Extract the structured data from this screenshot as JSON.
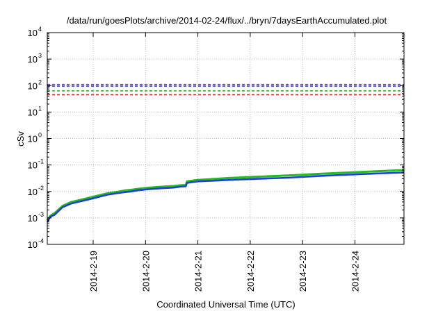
{
  "chart_data": {
    "type": "line",
    "title": "/data/run/goesPlots/archive/2014-02-24/flux/../bryn/7daysEarthAccumulated.plot",
    "xlabel": "Coordinated Universal Time (UTC)",
    "ylabel": "cSv",
    "y_scale": "log",
    "ylim_exponents": [
      -4,
      4
    ],
    "y_tick_labels": [
      {
        "base": "10",
        "exp": "-4"
      },
      {
        "base": "10",
        "exp": "-3"
      },
      {
        "base": "10",
        "exp": "-2"
      },
      {
        "base": "10",
        "exp": "-1"
      },
      {
        "base": "10",
        "exp": "0"
      },
      {
        "base": "10",
        "exp": "1"
      },
      {
        "base": "10",
        "exp": "2"
      },
      {
        "base": "10",
        "exp": "3"
      },
      {
        "base": "10",
        "exp": "4"
      }
    ],
    "xlim": [
      "2014-02-18 02:00",
      "2014-02-24 24:00"
    ],
    "x_tick_labels": [
      "2014-2-19",
      "2014-2-20",
      "2014-2-21",
      "2014-2-22",
      "2014-2-23",
      "2014-2-24"
    ],
    "grid": true,
    "thresholds": [
      {
        "value": 110,
        "color": "#8a2be2"
      },
      {
        "value": 95,
        "color": "#1f4fd6"
      },
      {
        "value": 63,
        "color": "#22bb22"
      },
      {
        "value": 45,
        "color": "#e02020"
      }
    ],
    "series": [
      {
        "color": "#22bb22",
        "x_days": [
          0.0,
          0.05,
          0.12,
          0.25,
          0.4,
          0.55,
          0.75,
          1.0,
          1.2,
          1.3,
          1.4,
          1.5,
          1.7,
          1.9,
          2.1,
          2.2,
          2.3,
          2.32,
          2.5,
          3.0,
          3.5,
          4.0,
          4.5,
          5.0,
          5.5,
          5.92
        ],
        "y": [
          0.0008,
          0.0012,
          0.0015,
          0.0028,
          0.004,
          0.0048,
          0.0062,
          0.0085,
          0.01,
          0.011,
          0.0115,
          0.0125,
          0.014,
          0.015,
          0.016,
          0.017,
          0.0175,
          0.024,
          0.027,
          0.032,
          0.036,
          0.04,
          0.046,
          0.052,
          0.058,
          0.064
        ]
      },
      {
        "color": "#1f3fdc",
        "x_days": [
          0.0,
          0.05,
          0.12,
          0.25,
          0.4,
          0.55,
          0.75,
          1.0,
          1.2,
          1.3,
          1.4,
          1.5,
          1.7,
          1.9,
          2.1,
          2.2,
          2.3,
          2.32,
          2.5,
          3.0,
          3.5,
          4.0,
          4.5,
          5.0,
          5.5,
          5.92
        ],
        "y": [
          0.0007,
          0.0011,
          0.0013,
          0.0025,
          0.0035,
          0.0042,
          0.0054,
          0.0075,
          0.0088,
          0.0095,
          0.01,
          0.011,
          0.0122,
          0.0132,
          0.014,
          0.015,
          0.0155,
          0.021,
          0.024,
          0.027,
          0.03,
          0.033,
          0.038,
          0.043,
          0.048,
          0.052
        ]
      }
    ]
  }
}
